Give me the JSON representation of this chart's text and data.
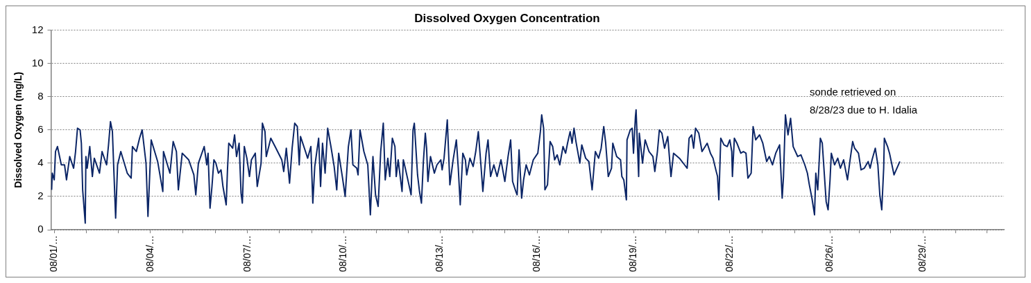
{
  "chart_data": {
    "type": "line",
    "title": "Dissolved Oxygen Concentration",
    "ylabel": "Dissolved Oxygen (mg/L)",
    "annotations": [
      "sonde retrieved on\n8/28/23 due to H. Idalia"
    ],
    "x": [
      "--07-31T22:00",
      "--07-31T22:30",
      "--08-01T00:00",
      "--08-01T01:00",
      "--08-01T02:30",
      "--08-01T05:30",
      "--08-01T08:00",
      "--08-01T09:30",
      "--08-01T12:00",
      "--08-01T15:00",
      "--08-01T16:30",
      "--08-01T18:00",
      "--08-01T20:00",
      "--08-01T21:00",
      "--08-01T22:00",
      "--08-02T00:00",
      "--08-02T00:30",
      "--08-02T01:30",
      "--08-02T03:30",
      "--08-02T05:30",
      "--08-02T07:00",
      "--08-02T11:00",
      "--08-02T13:00",
      "--08-02T16:30",
      "--08-02T18:00",
      "--08-02T19:30",
      "--08-02T21:00",
      "--08-02T23:30",
      "--08-03T01:00",
      "--08-03T03:30",
      "--08-03T08:30",
      "--08-03T11:30",
      "--08-03T12:30",
      "--08-03T15:30",
      "--08-03T18:00",
      "--08-03T20:00",
      "--08-03T23:00",
      "--08-04T00:30",
      "--08-04T03:00",
      "--08-04T08:00",
      "--08-04T12:00",
      "--08-04T12:30",
      "--08-04T17:30",
      "--08-04T20:00",
      "--08-04T22:30",
      "--08-05T00:00",
      "--08-05T03:00",
      "--08-05T08:00",
      "--08-05T12:00",
      "--08-05T13:30",
      "--08-05T15:30",
      "--08-05T20:00",
      "--08-05T22:00",
      "--08-05T23:00",
      "--08-06T00:30",
      "--08-06T02:00",
      "--08-06T03:30",
      "--08-06T05:00",
      "--08-06T07:00",
      "--08-06T09:00",
      "--08-06T10:30",
      "--08-06T13:00",
      "--08-06T14:00",
      "--08-06T15:00",
      "--08-06T18:00",
      "--08-06T19:30",
      "--08-06T21:00",
      "--08-06T23:00",
      "--08-07T00:30",
      "--08-07T01:30",
      "--08-07T03:00",
      "--08-07T05:00",
      "--08-07T07:00",
      "--08-07T08:30",
      "--08-07T11:30",
      "--08-07T13:00",
      "--08-07T16:00",
      "--08-07T17:00",
      "--08-07T19:00",
      "--08-07T20:00",
      "--08-07T23:30",
      "--08-08T03:30",
      "--08-08T08:00",
      "--08-08T09:30",
      "--08-08T11:30",
      "--08-08T14:00",
      "--08-08T16:00",
      "--08-08T18:00",
      "--08-08T20:00",
      "--08-08T21:30",
      "--08-08T22:30",
      "--08-09T01:30",
      "--08-09T04:00",
      "--08-09T06:30",
      "--08-09T08:00",
      "--08-09T09:30",
      "--08-09T12:30",
      "--08-09T14:00",
      "--08-09T15:30",
      "--08-09T17:30",
      "--08-09T19:30",
      "--08-09T22:00",
      "--08-10T00:30",
      "--08-10T02:30",
      "--08-10T04:00",
      "--08-10T07:00",
      "--08-10T09:00",
      "--08-10T11:30",
      "--08-10T13:30",
      "--08-10T15:00",
      "--08-10T18:00",
      "--08-10T19:00",
      "--08-10T20:30",
      "--08-10T23:30",
      "--08-11T02:30",
      "--08-11T04:30",
      "--08-11T06:30",
      "--08-11T08:30",
      "--08-11T10:30",
      "--08-11T12:30",
      "--08-11T14:30",
      "--08-11T16:00",
      "--08-11T18:00",
      "--08-11T19:30",
      "--08-11T21:30",
      "--08-11T23:30",
      "--08-12T00:30",
      "--08-12T02:00",
      "--08-12T05:00",
      "--08-12T06:00",
      "--08-12T07:30",
      "--08-12T09:30",
      "--08-12T12:00",
      "--08-12T13:30",
      "--08-12T14:30",
      "--08-12T17:00",
      "--08-12T18:30",
      "--08-12T20:00",
      "--08-12T21:30",
      "--08-12T23:00",
      "--08-13T00:00",
      "--08-13T01:00",
      "--08-13T03:00",
      "--08-13T06:00",
      "--08-13T08:00",
      "--08-13T11:00",
      "--08-13T12:00",
      "--08-13T13:30",
      "--08-13T16:00",
      "--08-13T18:00",
      "--08-13T20:30",
      "--08-13T23:00",
      "--08-14T00:30",
      "--08-14T02:00",
      "--08-14T04:00",
      "--08-14T06:00",
      "--08-14T07:00",
      "--08-14T09:30",
      "--08-14T12:00",
      "--08-14T14:00",
      "--08-14T16:00",
      "--08-14T18:00",
      "--08-14T19:30",
      "--08-14T22:00",
      "--08-14T23:30",
      "--08-15T01:30",
      "--08-15T04:00",
      "--08-15T06:30",
      "--08-15T09:30",
      "--08-15T12:30",
      "--08-15T15:00",
      "--08-15T17:00",
      "--08-15T18:30",
      "--08-15T21:00",
      "--08-15T22:00",
      "--08-15T23:30",
      "--08-16T01:30",
      "--08-16T03:00",
      "--08-16T05:00",
      "--08-16T07:30",
      "--08-16T10:30",
      "--08-16T14:00",
      "--08-16T16:00",
      "--08-16T17:00",
      "--08-16T18:30",
      "--08-16T19:30",
      "--08-16T21:30",
      "--08-16T23:30",
      "--08-17T01:30",
      "--08-17T03:00",
      "--08-17T05:00",
      "--08-17T07:00",
      "--08-17T09:30",
      "--08-17T11:30",
      "--08-17T13:00",
      "--08-17T15:00",
      "--08-17T16:30",
      "--08-17T18:00",
      "--08-17T19:30",
      "--08-17T22:30",
      "--08-18T00:00",
      "--08-18T03:00",
      "--08-18T05:30",
      "--08-18T08:00",
      "--08-18T10:30",
      "--08-18T13:00",
      "--08-18T15:00",
      "--08-18T17:00",
      "--08-18T18:30",
      "--08-18T20:30",
      "--08-18T23:00",
      "--08-19T00:00",
      "--08-19T03:00",
      "--08-19T06:00",
      "--08-19T07:00",
      "--08-19T08:30",
      "--08-19T10:30",
      "--08-19T11:00",
      "--08-19T13:30",
      "--08-19T15:00",
      "--08-19T16:00",
      "--08-19T17:30",
      "--08-19T18:00",
      "--08-19T20:00",
      "--08-19T20:30",
      "--08-19T23:00",
      "--08-20T01:00",
      "--08-20T04:00",
      "--08-20T07:00",
      "--08-20T08:30",
      "--08-20T10:30",
      "--08-20T12:00",
      "--08-20T14:00",
      "--08-20T16:00",
      "--08-20T18:30",
      "--08-20T21:00",
      "--08-20T23:00",
      "--08-21T03:30",
      "--08-21T07:30",
      "--08-21T09:30",
      "--08-21T11:00",
      "--08-21T13:00",
      "--08-21T14:30",
      "--08-21T16:00",
      "--08-21T18:30",
      "--08-21T21:00",
      "--08-22T01:00",
      "--08-22T03:30",
      "--08-22T05:30",
      "--08-22T08:00",
      "--08-22T09:00",
      "--08-22T10:00",
      "--08-22T11:30",
      "--08-22T14:00",
      "--08-22T16:30",
      "--08-22T18:30",
      "--08-22T20:00",
      "--08-22T20:30",
      "--08-22T22:00",
      "--08-23T00:00",
      "--08-23T03:00",
      "--08-23T05:00",
      "--08-23T07:00",
      "--08-23T08:30",
      "--08-23T11:00",
      "--08-23T12:30",
      "--08-23T14:30",
      "--08-23T17:30",
      "--08-23T20:00",
      "--08-23T23:00",
      "--08-24T01:00",
      "--08-24T03:30",
      "--08-24T06:00",
      "--08-24T09:00",
      "--08-24T11:00",
      "--08-24T12:00",
      "--08-24T13:30",
      "--08-24T15:30",
      "--08-24T17:30",
      "--08-24T19:30",
      "--08-24T23:00",
      "--08-25T01:30",
      "--08-25T04:30",
      "--08-25T06:30",
      "--08-25T08:00",
      "--08-25T10:00",
      "--08-25T12:00",
      "--08-25T13:00",
      "--08-25T14:30",
      "--08-25T16:30",
      "--08-25T18:00",
      "--08-25T21:00",
      "--08-25T22:30",
      "--08-26T00:00",
      "--08-26T01:00",
      "--08-26T03:30",
      "--08-26T06:00",
      "--08-26T08:00",
      "--08-26T10:30",
      "--08-26T13:30",
      "--08-26T15:30",
      "--08-26T17:30",
      "--08-26T19:00",
      "--08-26T22:00",
      "--08-27T00:00",
      "--08-27T02:30",
      "--08-27T05:30",
      "--08-27T07:00",
      "--08-27T08:30",
      "--08-27T11:00",
      "--08-27T13:00",
      "--08-27T14:30",
      "--08-27T16:00",
      "--08-27T17:30",
      "--08-27T18:00",
      "--08-27T20:30",
      "--08-27T22:00",
      "--08-28T01:30",
      "--08-28T06:00"
    ],
    "series": [
      {
        "color": "#0b2566",
        "values": [
          2.4,
          3.4,
          3.0,
          4.7,
          5.0,
          3.9,
          3.9,
          3.0,
          4.4,
          3.7,
          4.7,
          6.1,
          6.0,
          5.2,
          2.4,
          0.4,
          4.4,
          3.7,
          5.0,
          3.2,
          4.3,
          3.4,
          4.7,
          3.9,
          5.1,
          6.5,
          5.9,
          0.7,
          3.9,
          4.7,
          3.4,
          3.1,
          5.0,
          4.7,
          5.5,
          6.0,
          4.0,
          0.8,
          5.4,
          4.1,
          2.3,
          4.7,
          3.4,
          5.3,
          4.7,
          2.4,
          4.6,
          4.2,
          3.3,
          2.1,
          4.0,
          5.0,
          3.9,
          4.6,
          1.3,
          2.6,
          4.2,
          4.0,
          3.4,
          3.6,
          2.6,
          1.5,
          3.6,
          5.2,
          4.9,
          5.7,
          4.4,
          5.2,
          2.2,
          1.6,
          5.0,
          4.3,
          3.2,
          4.2,
          4.6,
          2.6,
          4.0,
          6.4,
          5.9,
          4.4,
          5.5,
          4.9,
          4.2,
          3.5,
          4.9,
          2.8,
          4.9,
          6.4,
          6.2,
          3.9,
          5.6,
          4.9,
          4.3,
          5.0,
          1.6,
          3.8,
          5.5,
          2.6,
          5.2,
          3.4,
          6.1,
          5.0,
          3.8,
          2.4,
          4.6,
          3.1,
          2.0,
          5.0,
          6.0,
          3.9,
          3.7,
          3.3,
          6.0,
          4.7,
          3.9,
          0.9,
          4.4,
          2.1,
          1.4,
          4.7,
          6.4,
          3.0,
          4.3,
          3.2,
          5.5,
          5.0,
          3.2,
          4.2,
          2.3,
          4.2,
          3.7,
          3.0,
          2.1,
          6.0,
          6.4,
          3.3,
          2.3,
          1.6,
          4.1,
          5.8,
          4.9,
          2.9,
          4.4,
          3.4,
          3.9,
          4.2,
          3.6,
          4.3,
          6.6,
          2.7,
          4.2,
          5.4,
          3.7,
          1.5,
          4.6,
          4.2,
          3.3,
          4.3,
          3.8,
          4.7,
          5.9,
          3.9,
          2.3,
          4.6,
          5.4,
          3.2,
          3.9,
          3.2,
          4.2,
          2.9,
          4.4,
          5.4,
          2.9,
          2.3,
          2.1,
          4.8,
          1.9,
          3.0,
          3.9,
          3.3,
          4.2,
          4.6,
          5.9,
          6.9,
          6.1,
          2.4,
          2.7,
          5.3,
          5.0,
          4.2,
          4.5,
          3.9,
          5.0,
          4.6,
          5.2,
          5.9,
          5.2,
          6.1,
          5.3,
          4.0,
          5.1,
          4.3,
          4.1,
          2.4,
          4.7,
          4.3,
          4.9,
          6.2,
          5.2,
          3.2,
          3.7,
          5.2,
          4.4,
          4.2,
          3.2,
          3.0,
          1.8,
          5.4,
          6.0,
          6.1,
          4.6,
          6.8,
          7.2,
          3.2,
          5.8,
          4.0,
          5.4,
          4.7,
          4.4,
          3.5,
          4.7,
          6.0,
          5.8,
          4.9,
          5.6,
          3.2,
          4.6,
          4.3,
          3.9,
          3.7,
          5.5,
          5.7,
          4.9,
          6.1,
          5.8,
          4.7,
          5.2,
          4.6,
          4.3,
          3.5,
          3.2,
          1.8,
          5.5,
          5.1,
          5.0,
          5.4,
          4.7,
          3.2,
          5.5,
          5.2,
          4.6,
          4.7,
          4.6,
          3.1,
          3.4,
          6.2,
          5.4,
          5.7,
          5.2,
          4.1,
          4.4,
          3.9,
          4.6,
          5.1,
          1.9,
          3.2,
          6.9,
          5.7,
          6.7,
          5.0,
          4.4,
          4.5,
          3.9,
          3.4,
          2.7,
          1.9,
          0.9,
          3.4,
          2.4,
          5.5,
          5.2,
          1.7,
          1.2,
          3.0,
          4.6,
          3.9,
          4.3,
          3.7,
          4.2,
          3.0,
          4.2,
          5.3,
          4.9,
          4.6,
          3.6,
          3.7,
          4.1,
          3.7,
          4.2,
          4.9,
          3.9,
          2.1,
          1.2,
          3.7,
          5.5,
          5.0,
          4.6,
          3.3,
          4.1
        ]
      }
    ],
    "xlim": [
      "--07-31T21:30",
      "--08-31T14:30"
    ],
    "xticks": [
      {
        "value": "--08-01T00:00",
        "label": "08/01/…"
      },
      {
        "value": "--08-02T01:00",
        "label": null
      },
      {
        "value": "--08-03T01:30",
        "label": null
      },
      {
        "value": "--08-04T02:30",
        "label": "08/04/…"
      },
      {
        "value": "--08-05T03:30",
        "label": null
      },
      {
        "value": "--08-06T04:30",
        "label": null
      },
      {
        "value": "--08-07T05:30",
        "label": "08/07/…"
      },
      {
        "value": "--08-08T06:00",
        "label": null
      },
      {
        "value": "--08-09T07:00",
        "label": null
      },
      {
        "value": "--08-10T08:00",
        "label": "08/10/…"
      },
      {
        "value": "--08-11T09:00",
        "label": null
      },
      {
        "value": "--08-12T10:00",
        "label": null
      },
      {
        "value": "--08-13T10:30",
        "label": "08/13/…"
      },
      {
        "value": "--08-14T11:30",
        "label": null
      },
      {
        "value": "--08-15T12:30",
        "label": null
      },
      {
        "value": "--08-16T13:30",
        "label": "08/16/…"
      },
      {
        "value": "--08-17T14:00",
        "label": null
      },
      {
        "value": "--08-18T15:00",
        "label": null
      },
      {
        "value": "--08-19T16:00",
        "label": "08/19/…"
      },
      {
        "value": "--08-20T17:00",
        "label": null
      },
      {
        "value": "--08-21T18:00",
        "label": null
      },
      {
        "value": "--08-22T18:30",
        "label": "08/22/…"
      },
      {
        "value": "--08-23T19:30",
        "label": null
      },
      {
        "value": "--08-24T20:30",
        "label": null
      },
      {
        "value": "--08-26T00:00",
        "label": "08/26/…"
      },
      {
        "value": "--08-26T22:30",
        "label": null
      },
      {
        "value": "--08-27T23:00",
        "label": null
      },
      {
        "value": "--08-29T00:00",
        "label": "08/29/…"
      },
      {
        "value": "--08-30T01:00",
        "label": null
      },
      {
        "value": "--08-31T01:30",
        "label": null
      }
    ],
    "ylim": [
      0,
      12
    ],
    "yticks": [
      0,
      2,
      4,
      6,
      8,
      10,
      12
    ],
    "grid": "y",
    "legend": false,
    "marker": "none",
    "line_style": "solid"
  }
}
